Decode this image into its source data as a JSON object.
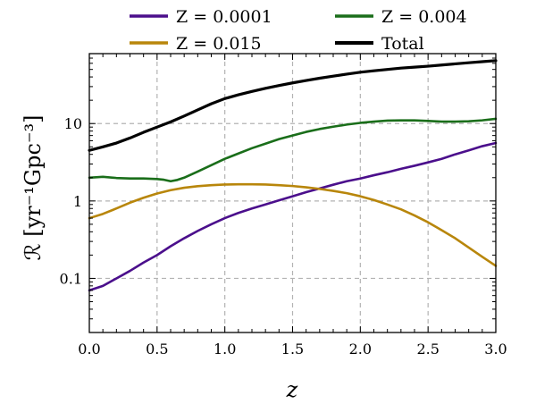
{
  "chart_data": {
    "type": "line",
    "xlabel": "z",
    "ylabel": "ℛ [yr⁻¹Gpc⁻³]",
    "xlim": [
      0.0,
      3.0
    ],
    "ylim": [
      0.02,
      80
    ],
    "yscale": "log",
    "grid": true,
    "legend_position": "top",
    "xticks": [
      "0.0",
      "0.5",
      "1.0",
      "1.5",
      "2.0",
      "2.5",
      "3.0"
    ],
    "yticks": [
      {
        "value": 0.1,
        "label": "0.1"
      },
      {
        "value": 1,
        "label": "1"
      },
      {
        "value": 10,
        "label": "10"
      }
    ],
    "series": [
      {
        "name": "Z = 0.0001",
        "color": "#4b0f8c",
        "x": [
          0.0,
          0.1,
          0.2,
          0.3,
          0.4,
          0.5,
          0.6,
          0.7,
          0.8,
          0.9,
          1.0,
          1.1,
          1.2,
          1.3,
          1.4,
          1.5,
          1.6,
          1.7,
          1.8,
          1.9,
          2.0,
          2.1,
          2.2,
          2.3,
          2.4,
          2.5,
          2.6,
          2.7,
          2.8,
          2.9,
          3.0
        ],
        "y": [
          0.07,
          0.08,
          0.1,
          0.125,
          0.16,
          0.2,
          0.26,
          0.33,
          0.41,
          0.5,
          0.6,
          0.7,
          0.8,
          0.9,
          1.02,
          1.15,
          1.3,
          1.45,
          1.62,
          1.8,
          1.95,
          2.15,
          2.35,
          2.6,
          2.85,
          3.15,
          3.5,
          4.0,
          4.5,
          5.1,
          5.6
        ]
      },
      {
        "name": "Z = 0.004",
        "color": "#1a6e1a",
        "x": [
          0.0,
          0.1,
          0.2,
          0.3,
          0.4,
          0.5,
          0.55,
          0.6,
          0.65,
          0.7,
          0.8,
          0.9,
          1.0,
          1.1,
          1.2,
          1.3,
          1.4,
          1.5,
          1.6,
          1.7,
          1.8,
          1.9,
          2.0,
          2.1,
          2.2,
          2.3,
          2.4,
          2.5,
          2.6,
          2.7,
          2.8,
          2.9,
          3.0
        ],
        "y": [
          2.0,
          2.05,
          1.98,
          1.95,
          1.95,
          1.92,
          1.88,
          1.8,
          1.87,
          2.0,
          2.4,
          2.9,
          3.5,
          4.1,
          4.8,
          5.5,
          6.3,
          7.0,
          7.8,
          8.5,
          9.1,
          9.7,
          10.2,
          10.6,
          10.9,
          11.0,
          11.0,
          10.8,
          10.6,
          10.6,
          10.7,
          11.0,
          11.5
        ]
      },
      {
        "name": "Z = 0.015",
        "color": "#b8860b",
        "x": [
          0.0,
          0.1,
          0.2,
          0.3,
          0.4,
          0.5,
          0.6,
          0.7,
          0.8,
          0.9,
          1.0,
          1.1,
          1.2,
          1.3,
          1.4,
          1.5,
          1.6,
          1.7,
          1.8,
          1.9,
          2.0,
          2.1,
          2.2,
          2.3,
          2.4,
          2.5,
          2.6,
          2.7,
          2.8,
          2.9,
          3.0
        ],
        "y": [
          0.6,
          0.68,
          0.8,
          0.95,
          1.1,
          1.25,
          1.38,
          1.48,
          1.55,
          1.6,
          1.63,
          1.64,
          1.64,
          1.63,
          1.6,
          1.56,
          1.5,
          1.43,
          1.35,
          1.26,
          1.15,
          1.03,
          0.9,
          0.78,
          0.65,
          0.53,
          0.42,
          0.33,
          0.25,
          0.19,
          0.145
        ]
      },
      {
        "name": "Total",
        "color": "#000000",
        "x": [
          0.0,
          0.1,
          0.2,
          0.3,
          0.4,
          0.5,
          0.6,
          0.7,
          0.8,
          0.9,
          1.0,
          1.1,
          1.2,
          1.3,
          1.4,
          1.5,
          1.6,
          1.7,
          1.8,
          1.9,
          2.0,
          2.1,
          2.2,
          2.3,
          2.4,
          2.5,
          2.6,
          2.7,
          2.8,
          2.9,
          3.0
        ],
        "y": [
          4.5,
          5.0,
          5.6,
          6.5,
          7.7,
          9.0,
          10.5,
          12.5,
          15.0,
          18.0,
          21.0,
          23.5,
          26.0,
          28.5,
          31.0,
          33.5,
          36.0,
          38.5,
          41.0,
          43.5,
          46.0,
          48.0,
          50.0,
          52.0,
          53.5,
          55.0,
          57.0,
          59.0,
          61.0,
          63.0,
          65.0
        ]
      }
    ]
  }
}
